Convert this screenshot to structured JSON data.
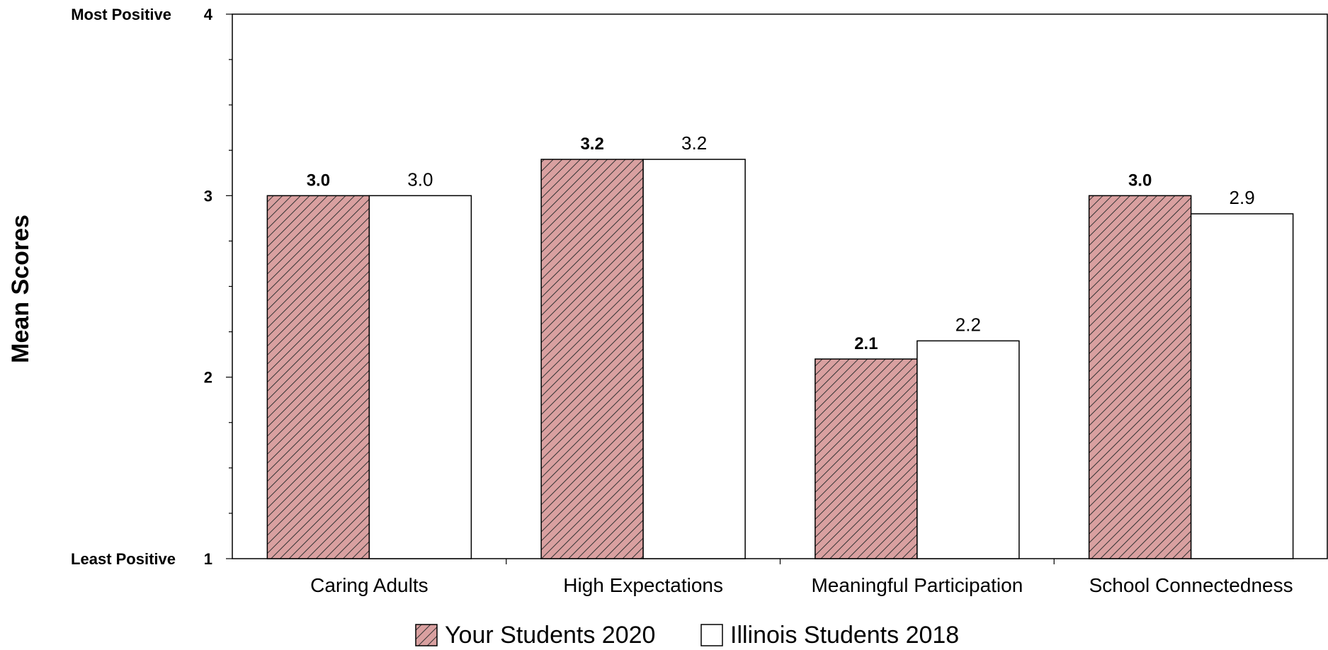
{
  "chart_data": {
    "type": "bar",
    "ylabel": "Mean Scores",
    "ylim": [
      1,
      4
    ],
    "yticks": [
      1,
      2,
      3,
      4
    ],
    "y_anchor_labels": {
      "top": "Most Positive",
      "bottom": "Least Positive"
    },
    "categories": [
      "Caring Adults",
      "High Expectations",
      "Meaningful Participation",
      "School Connectedness"
    ],
    "series": [
      {
        "name": "Your Students 2020",
        "values": [
          3.0,
          3.2,
          2.1,
          3.0
        ],
        "labels": [
          "3.0",
          "3.2",
          "2.1",
          "3.0"
        ],
        "fill": "#d9a0a0",
        "pattern": "diagonal-hatch"
      },
      {
        "name": "Illinois Students 2018",
        "values": [
          3.0,
          3.2,
          2.2,
          2.9
        ],
        "labels": [
          "3.0",
          "3.2",
          "2.2",
          "2.9"
        ],
        "fill": "#ffffff",
        "pattern": "none"
      }
    ],
    "legend": "bottom-center",
    "grid": false
  }
}
